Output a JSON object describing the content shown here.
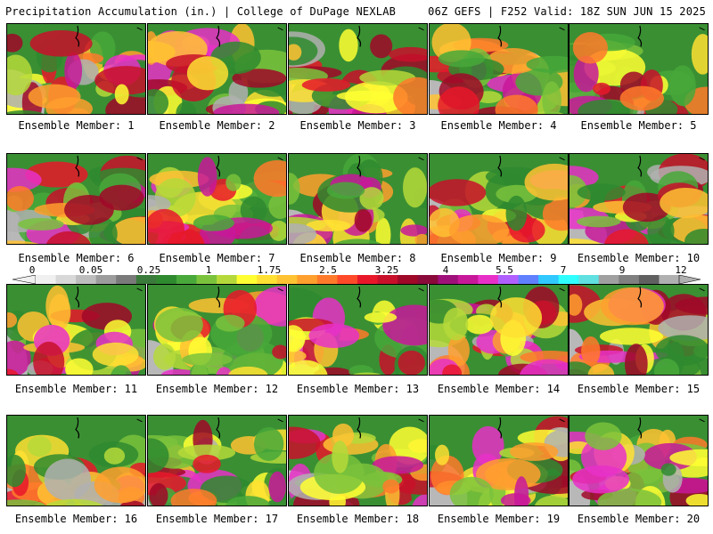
{
  "header": {
    "left": "Precipitation Accumulation (in.) | College of DuPage NEXLAB",
    "right": "06Z GEFS | F252 Valid: 18Z SUN JUN 15 2025"
  },
  "panels": [
    {
      "label": "Ensemble Member: 1"
    },
    {
      "label": "Ensemble Member: 2"
    },
    {
      "label": "Ensemble Member: 3"
    },
    {
      "label": "Ensemble Member: 4"
    },
    {
      "label": "Ensemble Member: 5"
    },
    {
      "label": "Ensemble Member: 6"
    },
    {
      "label": "Ensemble Member: 7"
    },
    {
      "label": "Ensemble Member: 8"
    },
    {
      "label": "Ensemble Member: 9"
    },
    {
      "label": "Ensemble Member: 10"
    },
    {
      "label": "Ensemble Member: 11"
    },
    {
      "label": "Ensemble Member: 12"
    },
    {
      "label": "Ensemble Member: 13"
    },
    {
      "label": "Ensemble Member: 14"
    },
    {
      "label": "Ensemble Member: 15"
    },
    {
      "label": "Ensemble Member: 16"
    },
    {
      "label": "Ensemble Member: 17"
    },
    {
      "label": "Ensemble Member: 18"
    },
    {
      "label": "Ensemble Member: 19"
    },
    {
      "label": "Ensemble Member: 20"
    }
  ],
  "colorbar": {
    "ticks": [
      "0",
      "0.05",
      "0.25",
      "1",
      "1.75",
      "2.5",
      "3.25",
      "4",
      "5.5",
      "7",
      "9",
      "12"
    ],
    "colors": [
      "#f0f0f0",
      "#d8d8d8",
      "#bdbdbd",
      "#9c9c9c",
      "#7a7a7a",
      "#3a7a3a",
      "#2f8a2f",
      "#48a83a",
      "#7ac23c",
      "#b5d93a",
      "#ffff33",
      "#ffe033",
      "#ffc233",
      "#ff9f2e",
      "#ff7a2a",
      "#ff4a2a",
      "#e8182a",
      "#c8102a",
      "#a00828",
      "#8a0a3a",
      "#a0107a",
      "#c8189a",
      "#e830c8",
      "#b060ff",
      "#6080ff",
      "#30c8ff",
      "#30ffff",
      "#60e0e0",
      "#a0a0a0",
      "#808080",
      "#606060",
      "#b0b0b0"
    ]
  }
}
